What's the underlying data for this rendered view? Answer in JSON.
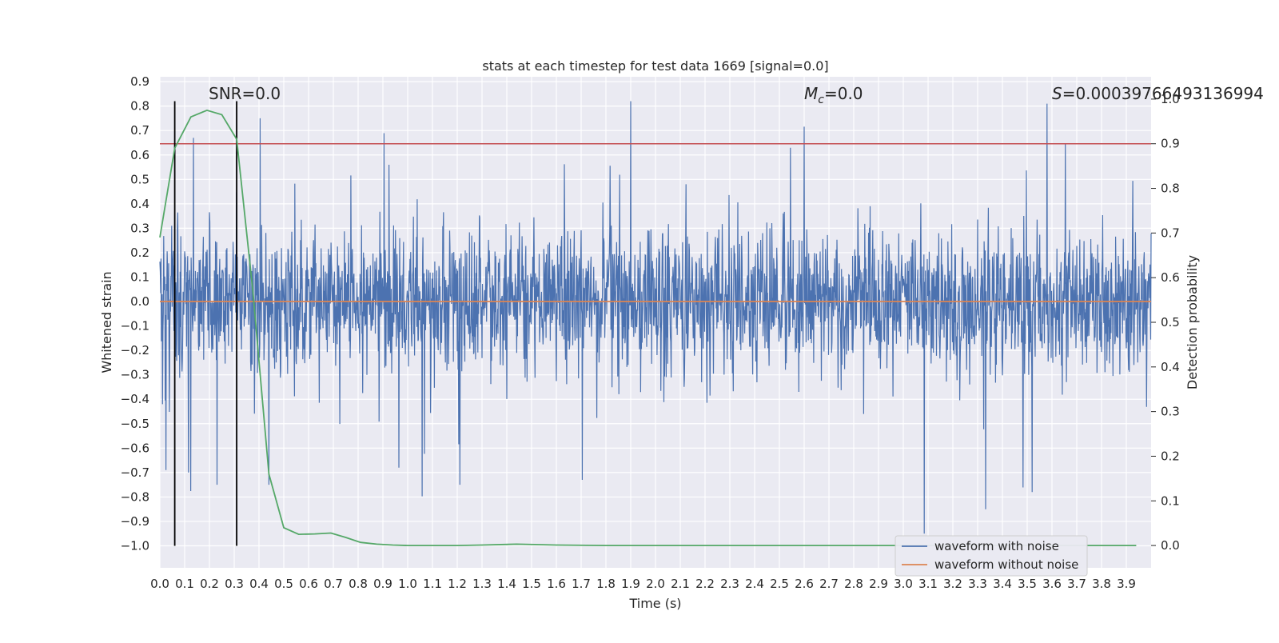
{
  "chart_data": {
    "type": "line",
    "title": "stats at each timestep for test data 1669 [signal=0.0]",
    "xlabel": "Time (s)",
    "ylabel": "Whitened strain",
    "y2label": "Detection probability",
    "xlim": [
      0.0,
      4.0
    ],
    "ylim": [
      -1.09,
      0.92
    ],
    "y2lim": [
      -0.05,
      1.05
    ],
    "xticks": [
      "0.0",
      "0.1",
      "0.2",
      "0.3",
      "0.4",
      "0.5",
      "0.6",
      "0.7",
      "0.8",
      "0.9",
      "1.0",
      "1.1",
      "1.2",
      "1.3",
      "1.4",
      "1.5",
      "1.6",
      "1.7",
      "1.8",
      "1.9",
      "2.0",
      "2.1",
      "2.2",
      "2.3",
      "2.4",
      "2.5",
      "2.6",
      "2.7",
      "2.8",
      "2.9",
      "3.0",
      "3.1",
      "3.2",
      "3.3",
      "3.4",
      "3.5",
      "3.6",
      "3.7",
      "3.8",
      "3.9"
    ],
    "yticks": [
      "0.9",
      "0.8",
      "0.7",
      "0.6",
      "0.5",
      "0.4",
      "0.3",
      "0.2",
      "0.1",
      "0.0",
      "−0.1",
      "−0.2",
      "−0.3",
      "−0.4",
      "−0.5",
      "−0.6",
      "−0.7",
      "−0.8",
      "−0.9",
      "−1.0"
    ],
    "y2ticks": [
      "1.0",
      "0.9",
      "0.8",
      "0.7",
      "0.6",
      "0.5",
      "0.4",
      "0.3",
      "0.2",
      "0.1",
      "0.0"
    ],
    "grid": true,
    "legend_position": "lower-right",
    "annotations": {
      "snr": "SNR=0.0",
      "mc_symbol": "M",
      "mc_sub": "c",
      "mc_value": "=0.0",
      "s_symbol": "S",
      "s_value": "=0.00039766493136994"
    },
    "threshold": 0.9,
    "vertical_markers": [
      0.06,
      0.31
    ],
    "vertical_marker_range": [
      -1.0,
      0.82
    ],
    "colors": {
      "noise": "#4c72b0",
      "clean": "#dd8452",
      "probability": "#55a868",
      "threshold": "#c44e52",
      "markers": "#000000",
      "background": "#eaeaf2",
      "grid": "#ffffff"
    },
    "series": [
      {
        "name": "waveform with noise",
        "x_range": [
          0.0,
          4.0
        ],
        "note_points": [
          [
            0.025,
            -0.69
          ],
          [
            0.115,
            -0.7
          ],
          [
            0.135,
            0.67
          ],
          [
            0.23,
            -0.75
          ],
          [
            0.405,
            0.75
          ],
          [
            0.44,
            -0.75
          ],
          [
            0.965,
            -0.68
          ],
          [
            1.21,
            -0.75
          ],
          [
            1.705,
            -0.73
          ],
          [
            1.9,
            0.82
          ],
          [
            3.085,
            -0.95
          ],
          [
            3.58,
            0.81
          ],
          [
            3.52,
            -0.78
          ]
        ]
      },
      {
        "name": "waveform without noise",
        "x": [
          0.0,
          4.0
        ],
        "y": [
          0.0,
          0.0
        ]
      },
      {
        "name": "probability",
        "x": [
          0.0,
          0.06,
          0.125,
          0.19,
          0.25,
          0.31,
          0.375,
          0.44,
          0.5,
          0.56,
          0.625,
          0.69,
          0.75,
          0.81,
          0.875,
          0.94,
          1.0,
          1.1,
          1.2,
          1.3,
          1.44,
          1.6,
          1.8,
          2.0,
          2.5,
          3.0,
          3.5,
          3.94
        ],
        "y": [
          0.69,
          0.89,
          0.96,
          0.975,
          0.965,
          0.91,
          0.57,
          0.16,
          0.04,
          0.025,
          0.026,
          0.028,
          0.018,
          0.007,
          0.003,
          0.001,
          0.0,
          0.0,
          0.0,
          0.001,
          0.003,
          0.001,
          0.0,
          0.0,
          0.0,
          0.0,
          0.0,
          0.0
        ]
      }
    ]
  }
}
